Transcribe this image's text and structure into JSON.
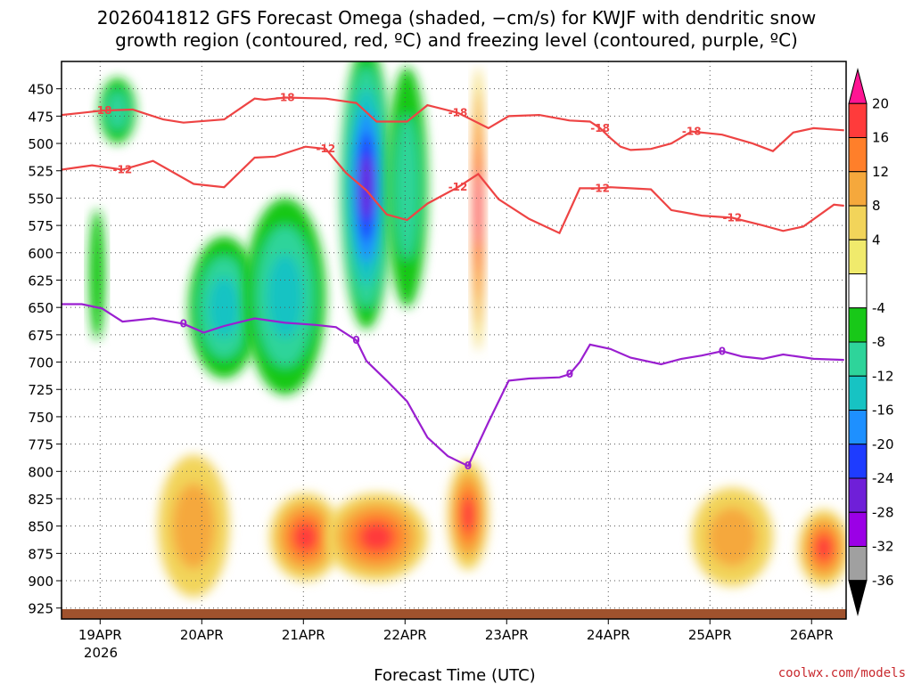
{
  "chart_data": {
    "type": "heatmap",
    "title_line1": "2026041812 GFS Forecast Omega (shaded, −cm/s) for KWJF with dendritic snow",
    "title_line2": "growth region (contoured, red, ºC) and freezing level (contoured, purple, ºC)",
    "xlabel": "Forecast Time (UTC)",
    "x_ticks": [
      "19APR",
      "20APR",
      "21APR",
      "22APR",
      "23APR",
      "24APR",
      "25APR",
      "26APR"
    ],
    "x_year_label": "2026",
    "x_range_days": [
      0,
      7.72
    ],
    "y_ticks": [
      450,
      475,
      500,
      525,
      550,
      575,
      600,
      625,
      650,
      675,
      700,
      725,
      750,
      775,
      800,
      825,
      850,
      875,
      900,
      925
    ],
    "y_range_hpa": [
      425,
      935
    ],
    "colorbar": {
      "tick_labels": [
        "20",
        "16",
        "12",
        "8",
        "4",
        "-4",
        "-8",
        "-12",
        "-16",
        "-20",
        "-24",
        "-28",
        "-32",
        "-36"
      ],
      "colors": [
        "#ff1493",
        "#ff3b3b",
        "#ff7f2a",
        "#f5a83c",
        "#f2d45a",
        "#f0ea6c",
        "#ffffff",
        "#18c818",
        "#2ed49a",
        "#17c3c3",
        "#1e90ff",
        "#1e3cff",
        "#6f1fd8",
        "#9b00e6",
        "#a0a0a0",
        "#000000"
      ]
    },
    "contours": {
      "minus18": {
        "label": "-18",
        "color": "#ee4444",
        "x": [
          0,
          0.2,
          0.4,
          0.7,
          1.0,
          1.2,
          1.6,
          1.9,
          2.0,
          2.2,
          2.6,
          2.9,
          3.1,
          3.4,
          3.6,
          3.9,
          4.2,
          4.4,
          4.7,
          5.0,
          5.2,
          5.3,
          5.4,
          5.5,
          5.6,
          5.8,
          6.0,
          6.2,
          6.5,
          6.8,
          7.0,
          7.2,
          7.4,
          7.7
        ],
        "p": [
          474,
          472,
          470,
          469,
          478,
          481,
          478,
          459,
          460,
          458,
          459,
          463,
          480,
          480,
          465,
          472,
          486,
          475,
          474,
          479,
          480,
          486,
          495,
          503,
          506,
          505,
          500,
          489,
          492,
          500,
          507,
          490,
          486,
          488
        ]
      },
      "minus12": {
        "label": "-12",
        "color": "#ee4444",
        "x": [
          0,
          0.3,
          0.6,
          0.9,
          1.3,
          1.6,
          1.9,
          2.1,
          2.4,
          2.6,
          2.8,
          3.0,
          3.2,
          3.4,
          3.6,
          3.9,
          4.1,
          4.3,
          4.6,
          4.9,
          5.1,
          5.3,
          5.4,
          5.6,
          5.8,
          6.0,
          6.3,
          6.6,
          6.9,
          7.1,
          7.3,
          7.6,
          7.7
        ],
        "p": [
          524,
          520,
          524,
          516,
          537,
          540,
          513,
          512,
          503,
          505,
          527,
          543,
          565,
          570,
          555,
          540,
          528,
          551,
          569,
          582,
          541,
          541,
          540,
          541,
          542,
          561,
          566,
          568,
          575,
          580,
          576,
          556,
          557
        ]
      },
      "zero": {
        "label": "0",
        "color": "#9a1fd0",
        "x": [
          0,
          0.2,
          0.4,
          0.6,
          0.9,
          1.2,
          1.4,
          1.6,
          1.9,
          2.2,
          2.5,
          2.7,
          2.9,
          3.0,
          3.2,
          3.4,
          3.6,
          3.8,
          4.0,
          4.2,
          4.4,
          4.6,
          4.9,
          5.0,
          5.1,
          5.2,
          5.4,
          5.6,
          5.9,
          6.1,
          6.3,
          6.5,
          6.7,
          6.9,
          7.1,
          7.4,
          7.7
        ],
        "p": [
          647,
          647,
          651,
          663,
          660,
          665,
          673,
          667,
          660,
          664,
          666,
          668,
          680,
          699,
          717,
          736,
          769,
          786,
          795,
          755,
          717,
          715,
          714,
          711,
          700,
          684,
          688,
          696,
          702,
          697,
          694,
          690,
          695,
          697,
          693,
          697,
          698
        ]
      }
    },
    "omega_blobs": [
      {
        "x": 0.55,
        "p": 470,
        "w": 0.18,
        "h": 60,
        "v": -8
      },
      {
        "x": 0.35,
        "p": 620,
        "w": 0.08,
        "h": 120,
        "v": -4
      },
      {
        "x": 1.6,
        "p": 650,
        "w": 0.35,
        "h": 130,
        "v": -12
      },
      {
        "x": 2.2,
        "p": 640,
        "w": 0.4,
        "h": 180,
        "v": -12
      },
      {
        "x": 3.0,
        "p": 540,
        "w": 0.25,
        "h": 260,
        "v": -24
      },
      {
        "x": 3.4,
        "p": 540,
        "w": 0.2,
        "h": 220,
        "v": -8
      },
      {
        "x": 4.1,
        "p": 560,
        "w": 0.06,
        "h": 260,
        "v": 20
      },
      {
        "x": 2.4,
        "p": 860,
        "w": 0.35,
        "h": 80,
        "v": 16
      },
      {
        "x": 3.1,
        "p": 860,
        "w": 0.5,
        "h": 80,
        "v": 16
      },
      {
        "x": 4.0,
        "p": 840,
        "w": 0.2,
        "h": 100,
        "v": 16
      },
      {
        "x": 1.3,
        "p": 850,
        "w": 0.35,
        "h": 130,
        "v": 8
      },
      {
        "x": 6.6,
        "p": 860,
        "w": 0.4,
        "h": 90,
        "v": 8
      },
      {
        "x": 7.5,
        "p": 870,
        "w": 0.25,
        "h": 70,
        "v": 16
      }
    ],
    "terrain_surface_hpa": 926
  },
  "credit": "coolwx.com/models"
}
